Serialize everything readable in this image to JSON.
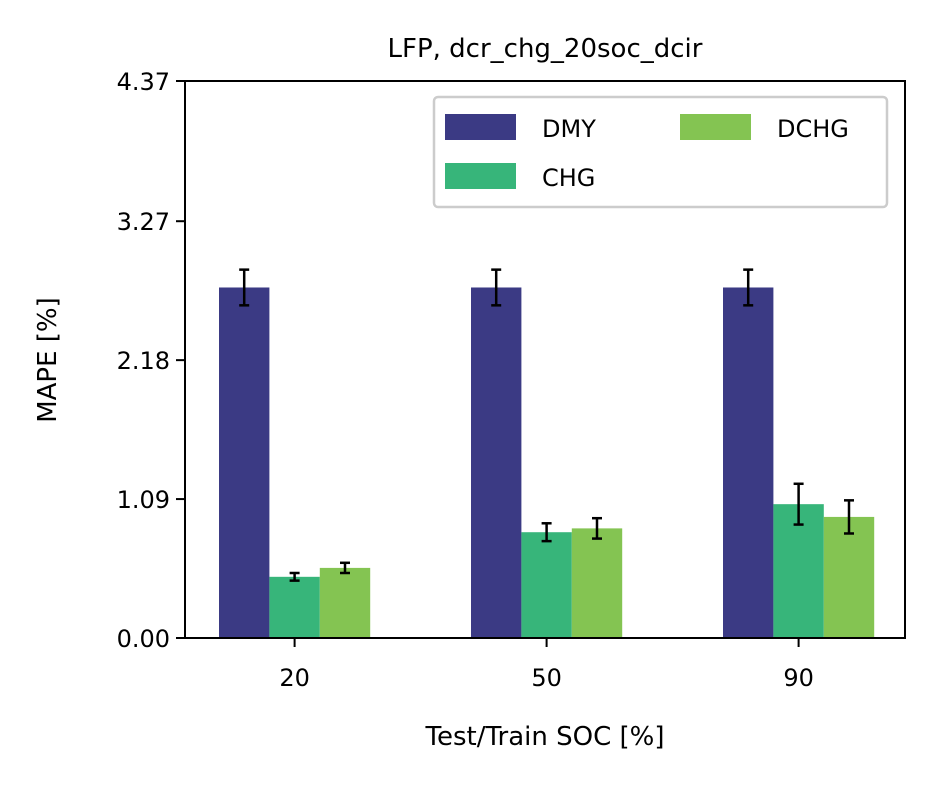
{
  "chart_data": {
    "type": "bar",
    "title": "LFP, dcr_chg_20soc_dcir",
    "xlabel": "Test/Train SOC [%]",
    "ylabel": "MAPE [%]",
    "categories": [
      "20",
      "50",
      "90"
    ],
    "ylim": [
      0,
      4.37
    ],
    "yticks": [
      "0.00",
      "1.09",
      "2.18",
      "3.27",
      "4.37"
    ],
    "series": [
      {
        "name": "DMY",
        "color": "#3b3a84",
        "values": [
          2.75,
          2.75,
          2.75
        ],
        "errors": [
          0.14,
          0.14,
          0.14
        ]
      },
      {
        "name": "CHG",
        "color": "#37b57a",
        "values": [
          0.48,
          0.83,
          1.05
        ],
        "errors": [
          0.03,
          0.07,
          0.16
        ]
      },
      {
        "name": "DCHG",
        "color": "#84c452",
        "values": [
          0.55,
          0.86,
          0.95
        ],
        "errors": [
          0.04,
          0.08,
          0.13
        ]
      }
    ],
    "legend": {
      "location": "upper right",
      "columns": 2
    },
    "grid": false
  }
}
